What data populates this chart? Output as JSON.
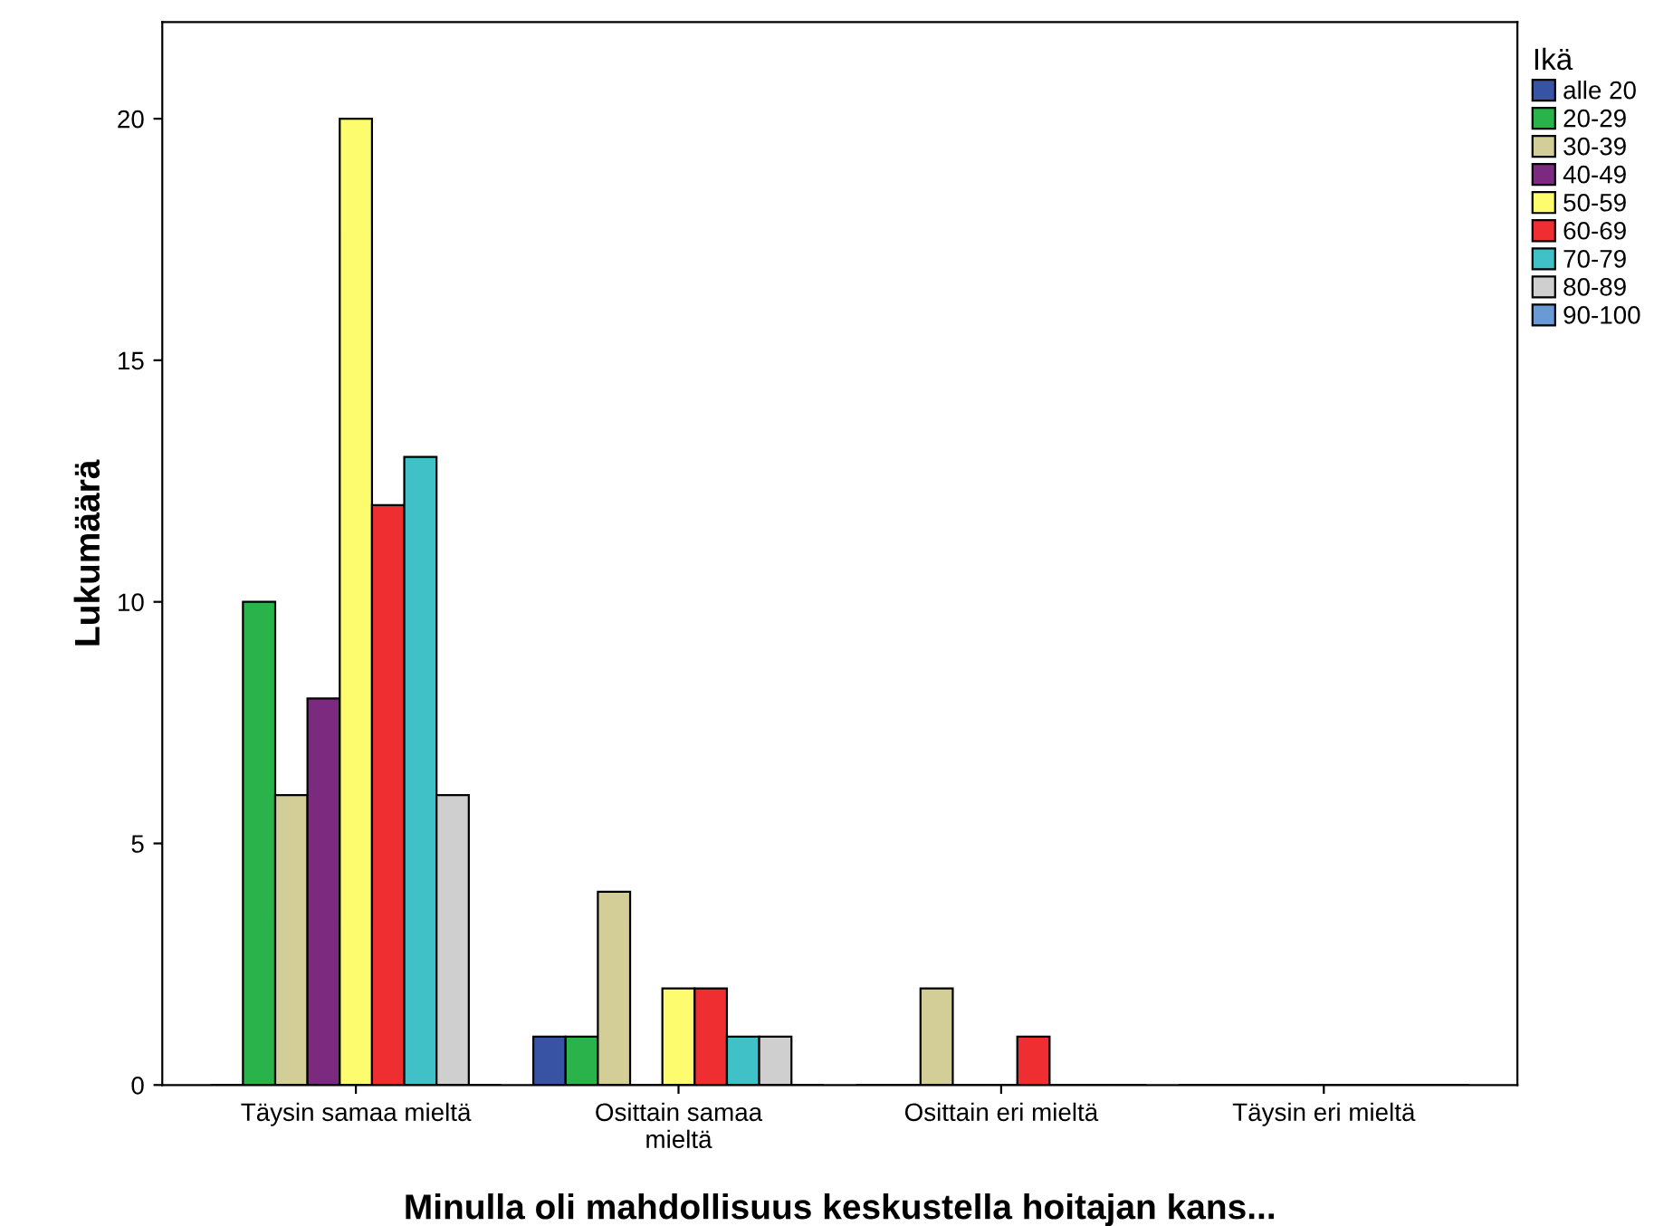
{
  "chart_data": {
    "type": "bar",
    "categories": [
      "Täysin samaa mieltä",
      "Osittain samaa\nmieltä",
      "Osittain eri mieltä",
      "Täysin eri mieltä"
    ],
    "xlabel": "Minulla oli mahdollisuus keskustella hoitajan kans...",
    "ylabel": "Lukumäärä",
    "legend_title": "Ikä",
    "series": [
      {
        "name": "alle 20",
        "color": "#3953a4",
        "values": [
          0,
          1,
          0,
          0
        ]
      },
      {
        "name": "20-29",
        "color": "#2ab24b",
        "values": [
          10,
          1,
          0,
          0
        ]
      },
      {
        "name": "30-39",
        "color": "#d3ce97",
        "values": [
          6,
          4,
          2,
          0
        ]
      },
      {
        "name": "40-49",
        "color": "#7b2a80",
        "values": [
          8,
          0,
          0,
          0
        ]
      },
      {
        "name": "50-59",
        "color": "#fcfc6e",
        "values": [
          20,
          2,
          0,
          0
        ]
      },
      {
        "name": "60-69",
        "color": "#ee2e30",
        "values": [
          12,
          2,
          1,
          0
        ]
      },
      {
        "name": "70-79",
        "color": "#3fc1c7",
        "values": [
          13,
          1,
          0,
          0
        ]
      },
      {
        "name": "80-89",
        "color": "#cfcfcf",
        "values": [
          6,
          1,
          0,
          0
        ]
      },
      {
        "name": "90-100",
        "color": "#6a9ad4",
        "values": [
          0,
          0,
          0,
          0
        ]
      }
    ],
    "ylim": [
      0,
      22
    ],
    "yticks": [
      0,
      5,
      10,
      15,
      20
    ],
    "grid": false,
    "legend": "right"
  }
}
